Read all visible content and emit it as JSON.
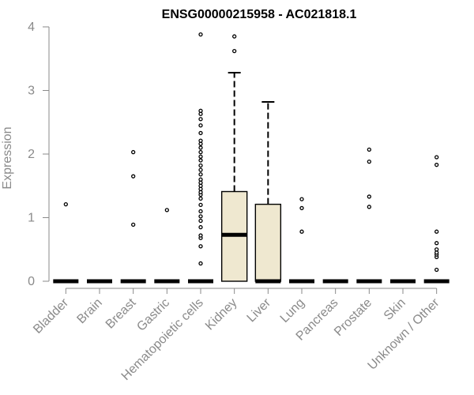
{
  "chart_data": {
    "type": "box",
    "title": "ENSG00000215958 - AC021818.1",
    "ylabel": "Expression",
    "xlabel": "",
    "ylim": [
      0,
      4
    ],
    "yticks": [
      0,
      1,
      2,
      3,
      4
    ],
    "categories": [
      "Bladder",
      "Brain",
      "Breast",
      "Gastric",
      "Hematopoietic cells",
      "Kidney",
      "Liver",
      "Lung",
      "Pancreas",
      "Prostate",
      "Skin",
      "Unknown / Other"
    ],
    "boxes": [
      {
        "category": "Bladder",
        "q1": 0,
        "median": 0,
        "q3": 0,
        "whisker_low": 0,
        "whisker_high": 0,
        "outliers": [
          1.21
        ]
      },
      {
        "category": "Brain",
        "q1": 0,
        "median": 0,
        "q3": 0,
        "whisker_low": 0,
        "whisker_high": 0,
        "outliers": []
      },
      {
        "category": "Breast",
        "q1": 0,
        "median": 0,
        "q3": 0,
        "whisker_low": 0,
        "whisker_high": 0,
        "outliers": [
          0.89,
          1.65,
          2.03
        ]
      },
      {
        "category": "Gastric",
        "q1": 0,
        "median": 0,
        "q3": 0,
        "whisker_low": 0,
        "whisker_high": 0,
        "outliers": [
          1.12
        ]
      },
      {
        "category": "Hematopoietic cells",
        "q1": 0,
        "median": 0,
        "q3": 0,
        "whisker_low": 0,
        "whisker_high": 0,
        "outliers": [
          0.28,
          0.55,
          0.68,
          0.72,
          0.85,
          0.95,
          1.02,
          1.1,
          1.2,
          1.3,
          1.36,
          1.4,
          1.45,
          1.5,
          1.55,
          1.6,
          1.68,
          1.75,
          1.82,
          1.9,
          1.96,
          2.03,
          2.1,
          2.16,
          2.21,
          2.33,
          2.45,
          2.55,
          2.63,
          2.68,
          3.88
        ]
      },
      {
        "category": "Kidney",
        "q1": 0,
        "median": 0.73,
        "q3": 1.41,
        "whisker_low": 0,
        "whisker_high": 3.28,
        "outliers": [
          3.62,
          3.85
        ]
      },
      {
        "category": "Liver",
        "q1": 0,
        "median": 0,
        "q3": 1.21,
        "whisker_low": 0,
        "whisker_high": 2.82,
        "outliers": []
      },
      {
        "category": "Lung",
        "q1": 0,
        "median": 0,
        "q3": 0,
        "whisker_low": 0,
        "whisker_high": 0,
        "outliers": [
          0.78,
          1.15,
          1.29
        ]
      },
      {
        "category": "Pancreas",
        "q1": 0,
        "median": 0,
        "q3": 0,
        "whisker_low": 0,
        "whisker_high": 0,
        "outliers": []
      },
      {
        "category": "Prostate",
        "q1": 0,
        "median": 0,
        "q3": 0,
        "whisker_low": 0,
        "whisker_high": 0,
        "outliers": [
          1.17,
          1.33,
          1.88,
          2.07
        ]
      },
      {
        "category": "Skin",
        "q1": 0,
        "median": 0,
        "q3": 0,
        "whisker_low": 0,
        "whisker_high": 0,
        "outliers": []
      },
      {
        "category": "Unknown / Other",
        "q1": 0,
        "median": 0,
        "q3": 0,
        "whisker_low": 0,
        "whisker_high": 0,
        "outliers": [
          0.18,
          0.38,
          0.42,
          0.45,
          0.5,
          0.6,
          0.78,
          1.83,
          1.95
        ]
      }
    ],
    "grid": false,
    "legend": "none",
    "box_fill": "#efe8d0",
    "line_color": "#000000",
    "axis_color": "#8a8a8a"
  }
}
